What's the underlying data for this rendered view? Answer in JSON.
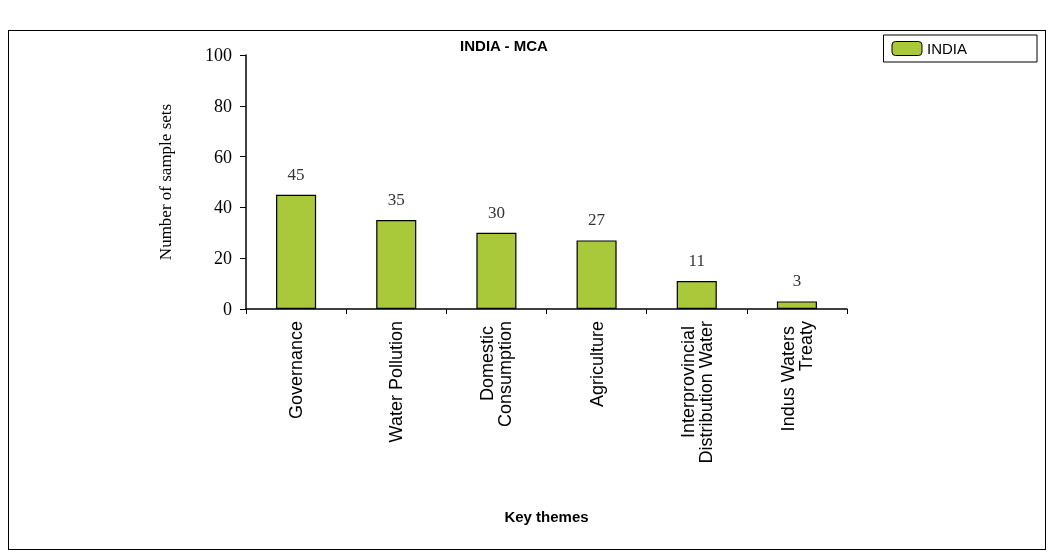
{
  "chart_data": {
    "type": "bar",
    "title": "INDIA - MCA",
    "xlabel": "Key themes",
    "ylabel": "Number of sample sets",
    "categories": [
      "Governance",
      "Water Pollution",
      "Domestic Consumption",
      "Agriculture",
      "Interprovincial Distribution Water",
      "Indus Waters Treaty"
    ],
    "series": [
      {
        "name": "INDIA",
        "color": "#a9c83a",
        "values": [
          45,
          35,
          30,
          27,
          11,
          3
        ]
      }
    ],
    "ylim": [
      0,
      100
    ],
    "yticks": [
      0,
      20,
      40,
      60,
      80,
      100
    ],
    "data_labels": true,
    "grid": false,
    "legend": "top right"
  }
}
